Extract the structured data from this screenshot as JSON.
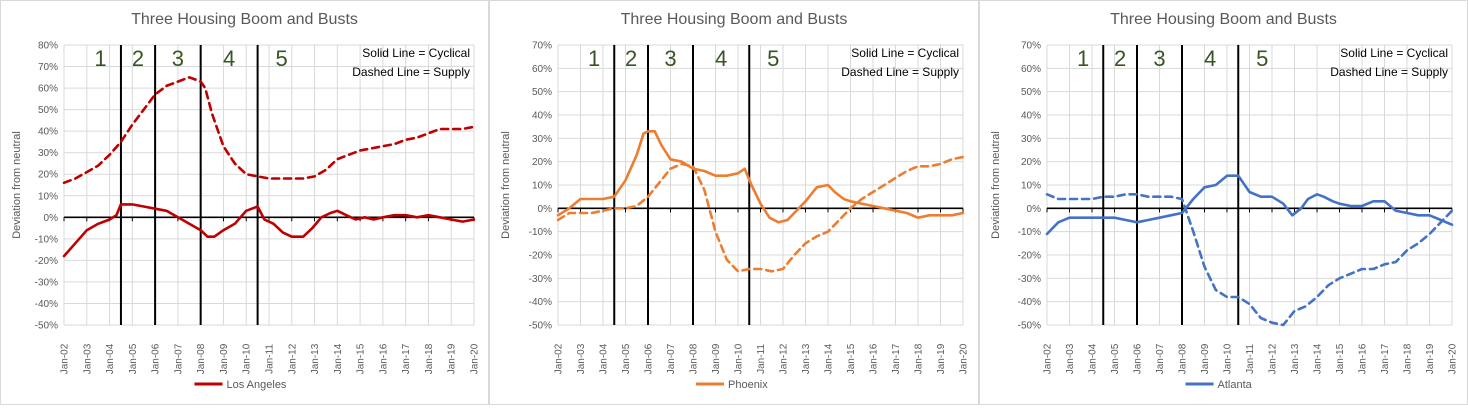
{
  "chart_data": [
    {
      "type": "line",
      "title": "Three Housing Boom and Busts",
      "ylabel": "Deviation from neutral",
      "xlabel": "",
      "ylim": [
        -50,
        80
      ],
      "yticks": [
        -50,
        -40,
        -30,
        -20,
        -10,
        0,
        10,
        20,
        30,
        40,
        50,
        60,
        70,
        80
      ],
      "xlim": [
        2002,
        2020
      ],
      "xticks": [
        "Jan-02",
        "Jan-03",
        "Jan-04",
        "Jan-05",
        "Jan-06",
        "Jan-07",
        "Jan-08",
        "Jan-09",
        "Jan-10",
        "Jan-11",
        "Jan-12",
        "Jan-13",
        "Jan-14",
        "Jan-15",
        "Jan-16",
        "Jan-17",
        "Jan-18",
        "Jan-19",
        "Jan-20"
      ],
      "grid": true,
      "legend_position": "bottom",
      "color": "#C00000",
      "annotations": [
        "Solid Line = Cyclical",
        "Dashed Line = Supply"
      ],
      "phase_boundaries": [
        2004.5,
        2006.0,
        2008.0,
        2010.5
      ],
      "phase_labels": [
        "1",
        "2",
        "3",
        "4",
        "5"
      ],
      "series": [
        {
          "name": "Los Angeles",
          "style": "solid",
          "x": [
            2002.0,
            2002.5,
            2003.0,
            2003.5,
            2004.0,
            2004.3,
            2004.5,
            2005.0,
            2005.5,
            2006.0,
            2006.5,
            2007.0,
            2007.5,
            2008.0,
            2008.3,
            2008.6,
            2009.0,
            2009.5,
            2010.0,
            2010.5,
            2010.8,
            2011.2,
            2011.6,
            2012.0,
            2012.5,
            2012.9,
            2013.3,
            2013.7,
            2014.0,
            2014.4,
            2014.8,
            2015.2,
            2015.6,
            2016.0,
            2016.5,
            2017.0,
            2017.5,
            2018.0,
            2018.5,
            2019.0,
            2019.5,
            2020.0
          ],
          "y": [
            -18,
            -12,
            -6,
            -3,
            -1,
            1,
            6,
            6,
            5,
            4,
            3,
            0,
            -3,
            -6,
            -9,
            -9,
            -6,
            -3,
            3,
            5,
            -1,
            -3,
            -7,
            -9,
            -9,
            -5,
            0,
            2,
            3,
            1,
            -1,
            0,
            -1,
            0,
            1,
            1,
            0,
            1,
            0,
            -1,
            -2,
            -1
          ]
        },
        {
          "name": "Los Angeles",
          "style": "dashed",
          "x": [
            2002.0,
            2002.5,
            2003.0,
            2003.5,
            2004.0,
            2004.5,
            2005.0,
            2005.5,
            2006.0,
            2006.5,
            2007.0,
            2007.5,
            2008.0,
            2008.2,
            2008.5,
            2009.0,
            2009.5,
            2010.0,
            2010.5,
            2011.0,
            2011.5,
            2012.0,
            2012.5,
            2013.0,
            2013.5,
            2014.0,
            2014.5,
            2015.0,
            2015.5,
            2016.0,
            2016.5,
            2017.0,
            2017.5,
            2018.0,
            2018.5,
            2019.0,
            2019.5,
            2020.0
          ],
          "y": [
            16,
            18,
            21,
            24,
            29,
            35,
            43,
            50,
            57,
            61,
            63,
            65,
            63,
            60,
            48,
            33,
            25,
            20,
            19,
            18,
            18,
            18,
            18,
            19,
            22,
            27,
            29,
            31,
            32,
            33,
            34,
            36,
            37,
            39,
            41,
            41,
            41,
            42
          ]
        }
      ]
    },
    {
      "type": "line",
      "title": "Three Housing Boom and Busts",
      "ylabel": "Deviation from neutral",
      "xlabel": "",
      "ylim": [
        -50,
        70
      ],
      "yticks": [
        -50,
        -40,
        -30,
        -20,
        -10,
        0,
        10,
        20,
        30,
        40,
        50,
        60,
        70
      ],
      "xlim": [
        2002,
        2020
      ],
      "xticks": [
        "Jan-02",
        "Jan-03",
        "Jan-04",
        "Jan-05",
        "Jan-06",
        "Jan-07",
        "Jan-08",
        "Jan-09",
        "Jan-10",
        "Jan-11",
        "Jan-12",
        "Jan-13",
        "Jan-14",
        "Jan-15",
        "Jan-16",
        "Jan-17",
        "Jan-18",
        "Jan-19",
        "Jan-20"
      ],
      "grid": true,
      "legend_position": "bottom",
      "color": "#ED7D31",
      "annotations": [
        "Solid Line = Cyclical",
        "Dashed Line = Supply"
      ],
      "phase_boundaries": [
        2004.5,
        2006.0,
        2008.0,
        2010.5
      ],
      "phase_labels": [
        "1",
        "2",
        "3",
        "4",
        "5"
      ],
      "series": [
        {
          "name": "Phoenix",
          "style": "solid",
          "x": [
            2002.0,
            2002.5,
            2003.0,
            2003.5,
            2004.0,
            2004.5,
            2005.0,
            2005.5,
            2005.8,
            2006.0,
            2006.3,
            2006.6,
            2007.0,
            2007.5,
            2008.0,
            2008.5,
            2009.0,
            2009.5,
            2010.0,
            2010.3,
            2010.6,
            2011.0,
            2011.4,
            2011.8,
            2012.2,
            2012.6,
            2013.0,
            2013.5,
            2014.0,
            2014.3,
            2014.7,
            2015.0,
            2015.5,
            2016.0,
            2016.5,
            2017.0,
            2017.5,
            2018.0,
            2018.5,
            2019.0,
            2019.5,
            2020.0
          ],
          "y": [
            -3,
            0,
            4,
            4,
            4,
            5,
            12,
            23,
            32,
            33,
            33,
            27,
            21,
            20,
            17,
            16,
            14,
            14,
            15,
            17,
            10,
            2,
            -4,
            -6,
            -5,
            -1,
            3,
            9,
            10,
            7,
            4,
            3,
            2,
            1,
            0,
            -1,
            -2,
            -4,
            -3,
            -3,
            -3,
            -2
          ]
        },
        {
          "name": "Phoenix",
          "style": "dashed",
          "x": [
            2002.0,
            2002.5,
            2003.0,
            2003.5,
            2004.0,
            2004.5,
            2005.0,
            2005.5,
            2006.0,
            2006.5,
            2007.0,
            2007.5,
            2008.0,
            2008.5,
            2009.0,
            2009.5,
            2010.0,
            2010.5,
            2011.0,
            2011.5,
            2012.0,
            2012.5,
            2013.0,
            2013.5,
            2014.0,
            2014.5,
            2015.0,
            2015.5,
            2016.0,
            2016.5,
            2017.0,
            2017.5,
            2018.0,
            2018.5,
            2019.0,
            2019.5,
            2020.0
          ],
          "y": [
            -5,
            -2,
            -2,
            -2,
            -1,
            0,
            0,
            1,
            5,
            11,
            17,
            19,
            18,
            8,
            -10,
            -22,
            -27,
            -26,
            -26,
            -27,
            -26,
            -20,
            -15,
            -12,
            -10,
            -5,
            0,
            4,
            7,
            10,
            13,
            16,
            18,
            18,
            19,
            21,
            22
          ]
        }
      ]
    },
    {
      "type": "line",
      "title": "Three Housing Boom and Busts",
      "ylabel": "Deviation from neutral",
      "xlabel": "",
      "ylim": [
        -50,
        70
      ],
      "yticks": [
        -50,
        -40,
        -30,
        -20,
        -10,
        0,
        10,
        20,
        30,
        40,
        50,
        60,
        70
      ],
      "xlim": [
        2002,
        2020
      ],
      "xticks": [
        "Jan-02",
        "Jan-03",
        "Jan-04",
        "Jan-05",
        "Jan-06",
        "Jan-07",
        "Jan-08",
        "Jan-09",
        "Jan-10",
        "Jan-11",
        "Jan-12",
        "Jan-13",
        "Jan-14",
        "Jan-15",
        "Jan-16",
        "Jan-17",
        "Jan-18",
        "Jan-19",
        "Jan-20"
      ],
      "grid": true,
      "legend_position": "bottom",
      "color": "#4472C4",
      "annotations": [
        "Solid Line = Cyclical",
        "Dashed Line = Supply"
      ],
      "phase_boundaries": [
        2004.5,
        2006.0,
        2008.0,
        2010.5
      ],
      "phase_labels": [
        "1",
        "2",
        "3",
        "4",
        "5"
      ],
      "series": [
        {
          "name": "Atlanta",
          "style": "solid",
          "x": [
            2002.0,
            2002.5,
            2003.0,
            2003.5,
            2004.0,
            2004.5,
            2005.0,
            2005.5,
            2006.0,
            2006.5,
            2007.0,
            2007.5,
            2008.0,
            2008.5,
            2009.0,
            2009.5,
            2010.0,
            2010.5,
            2011.0,
            2011.5,
            2012.0,
            2012.5,
            2012.9,
            2013.3,
            2013.6,
            2014.0,
            2014.3,
            2014.7,
            2015.0,
            2015.5,
            2016.0,
            2016.5,
            2017.0,
            2017.5,
            2018.0,
            2018.5,
            2019.0,
            2019.5,
            2020.0
          ],
          "y": [
            -11,
            -6,
            -4,
            -4,
            -4,
            -4,
            -4,
            -5,
            -6,
            -5,
            -4,
            -3,
            -2,
            4,
            9,
            10,
            14,
            14,
            7,
            5,
            5,
            2,
            -3,
            0,
            4,
            6,
            5,
            3,
            2,
            1,
            1,
            3,
            3,
            -1,
            -2,
            -3,
            -3,
            -5,
            -7
          ]
        },
        {
          "name": "Atlanta",
          "style": "dashed",
          "x": [
            2002.0,
            2002.5,
            2003.0,
            2003.5,
            2004.0,
            2004.5,
            2005.0,
            2005.5,
            2006.0,
            2006.5,
            2007.0,
            2007.5,
            2008.0,
            2008.5,
            2009.0,
            2009.5,
            2010.0,
            2010.5,
            2011.0,
            2011.5,
            2012.0,
            2012.5,
            2013.0,
            2013.5,
            2014.0,
            2014.5,
            2015.0,
            2015.5,
            2016.0,
            2016.5,
            2017.0,
            2017.5,
            2018.0,
            2018.5,
            2019.0,
            2019.5,
            2020.0
          ],
          "y": [
            6,
            4,
            4,
            4,
            4,
            5,
            5,
            6,
            6,
            5,
            5,
            5,
            4,
            -10,
            -25,
            -35,
            -38,
            -38,
            -41,
            -47,
            -49,
            -50,
            -44,
            -42,
            -38,
            -33,
            -30,
            -28,
            -26,
            -26,
            -24,
            -23,
            -18,
            -15,
            -11,
            -6,
            -1
          ]
        }
      ]
    }
  ]
}
